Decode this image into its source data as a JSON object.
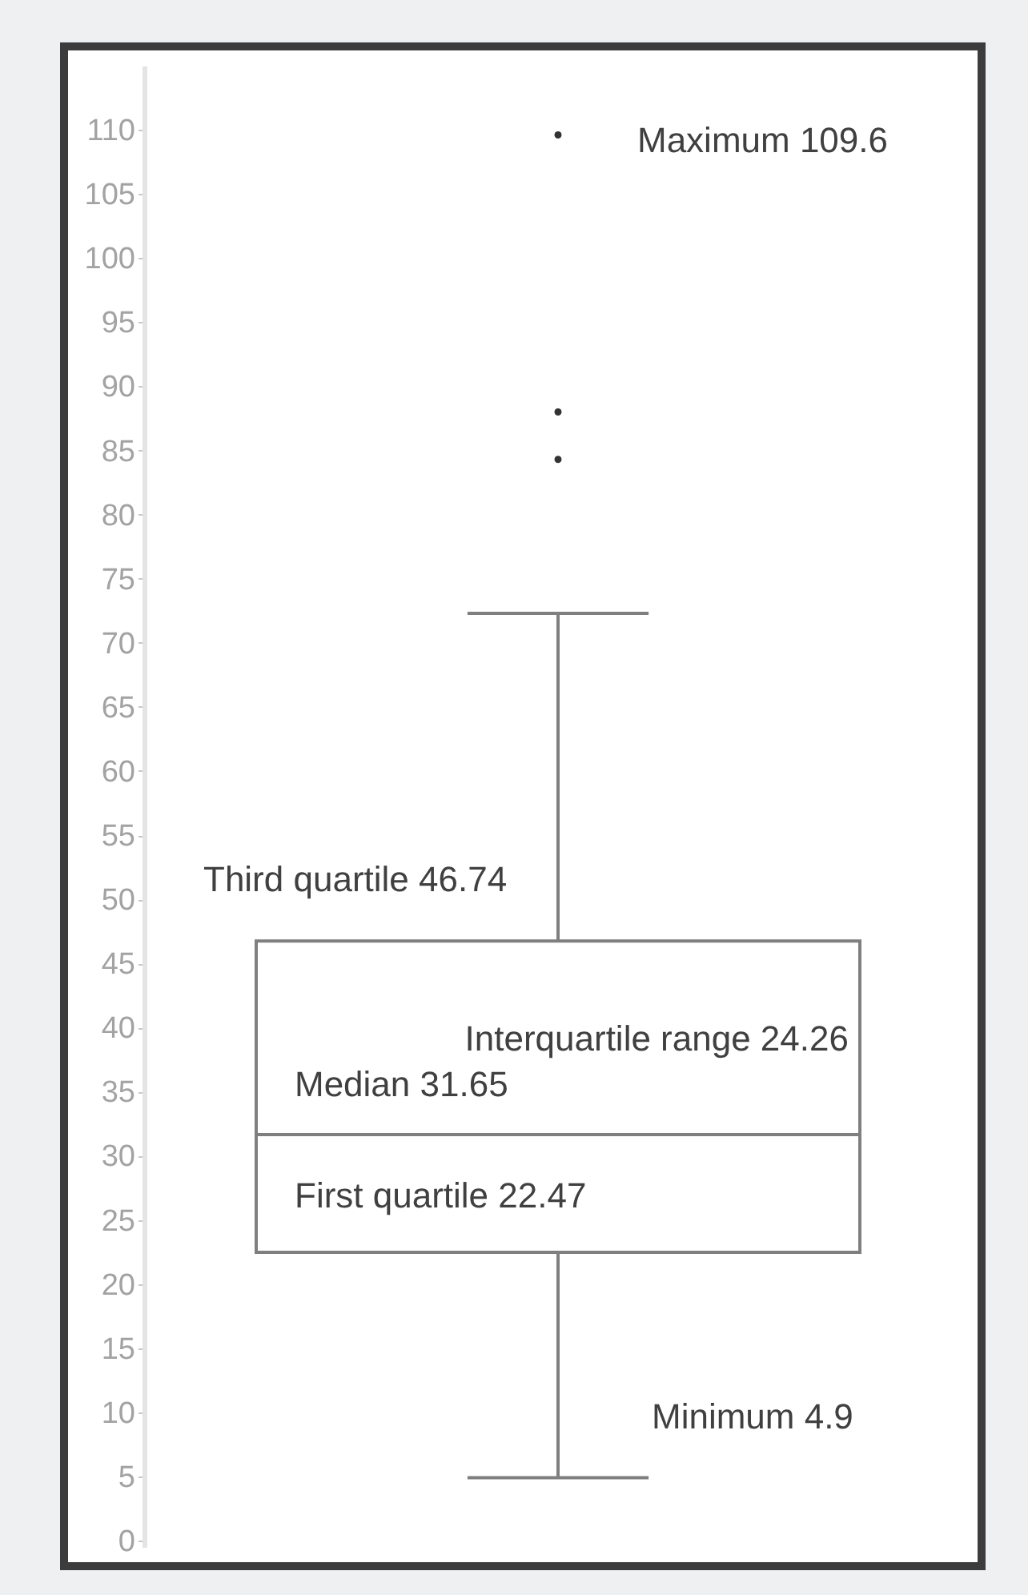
{
  "chart_data": {
    "type": "box",
    "categories": [
      null
    ],
    "series": [
      {
        "color": "#7f7f7f",
        "boxes": [
          {
            "low": 4.9,
            "q1": 22.47,
            "median": 31.65,
            "q3": 46.74,
            "high": 72.3,
            "outliers": [
              84.3,
              88,
              109.6
            ]
          }
        ]
      }
    ],
    "ylim": [
      -0.5,
      115
    ],
    "yticks": [
      0,
      5,
      10,
      15,
      20,
      25,
      30,
      35,
      40,
      45,
      50,
      55,
      60,
      65,
      70,
      75,
      80,
      85,
      90,
      95,
      100,
      105,
      110
    ],
    "tick_labels": "y",
    "grid": false,
    "annotations": [
      "Maximum 109.6",
      {
        "text": "Third quartile 46.74",
        "y": 46.74
      },
      "Interquartile range 24.26",
      {
        "text": "Median 31.65",
        "y": 31.65
      },
      {
        "text": "First quartile 22.47",
        "y": 22.47
      },
      "Minimum 4.9"
    ]
  }
}
